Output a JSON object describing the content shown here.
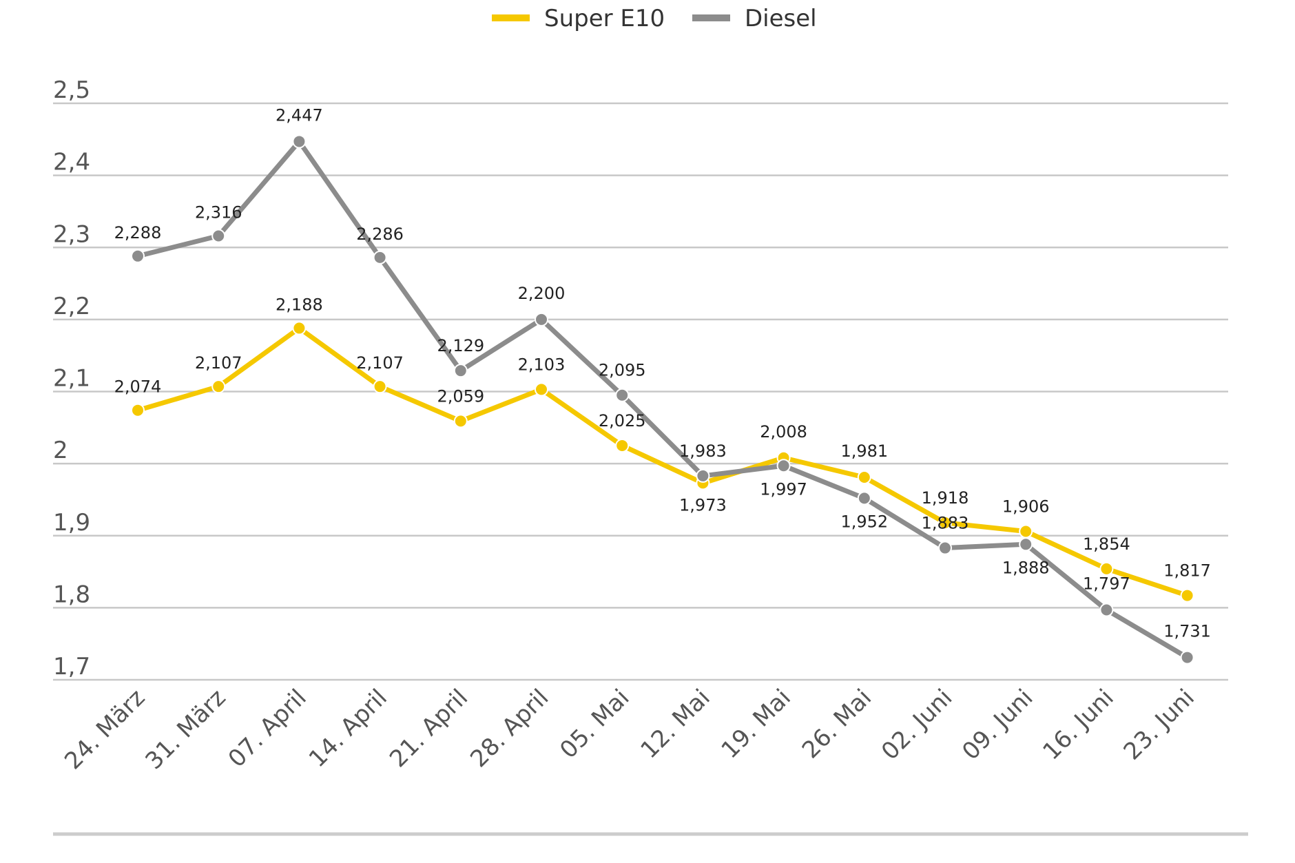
{
  "chart_data": {
    "type": "line",
    "categories": [
      "24. März",
      "31. März",
      "07. April",
      "14. April",
      "21. April",
      "28. April",
      "05. Mai",
      "12. Mai",
      "19. Mai",
      "26. Mai",
      "02. Juni",
      "09. Juni",
      "16. Juni",
      "23. Juni"
    ],
    "series": [
      {
        "name": "Super E10",
        "color": "#f5c800",
        "values": [
          2.074,
          2.107,
          2.188,
          2.107,
          2.059,
          2.103,
          2.025,
          1.973,
          2.008,
          1.981,
          1.918,
          1.906,
          1.854,
          1.817
        ],
        "labels": [
          "2,074",
          "2,107",
          "2,188",
          "2,107",
          "2,059",
          "2,103",
          "2,025",
          "1,973",
          "2,008",
          "1,981",
          "1,918",
          "1,906",
          "1,854",
          "1,817"
        ]
      },
      {
        "name": "Diesel",
        "color": "#8c8c8c",
        "values": [
          2.288,
          2.316,
          2.447,
          2.286,
          2.129,
          2.2,
          2.095,
          1.983,
          1.997,
          1.952,
          1.883,
          1.888,
          1.797,
          1.731
        ],
        "labels": [
          "2,288",
          "2,316",
          "2,447",
          "2,286",
          "2,129",
          "2,200",
          "2,095",
          "1,983",
          "1,997",
          "1,952",
          "1,883",
          "1,888",
          "1,797",
          "1,731"
        ]
      }
    ],
    "yticks": [
      1.7,
      1.8,
      1.9,
      2.0,
      2.1,
      2.2,
      2.3,
      2.4,
      2.5
    ],
    "ytick_labels": [
      "1,7",
      "1,8",
      "1,9",
      "2",
      "2,1",
      "2,2",
      "2,3",
      "2,4",
      "2,5"
    ],
    "ylim": [
      1.7,
      2.5
    ],
    "grid": true,
    "legend": "top-center",
    "gridline_color": "#c8c8c8"
  }
}
